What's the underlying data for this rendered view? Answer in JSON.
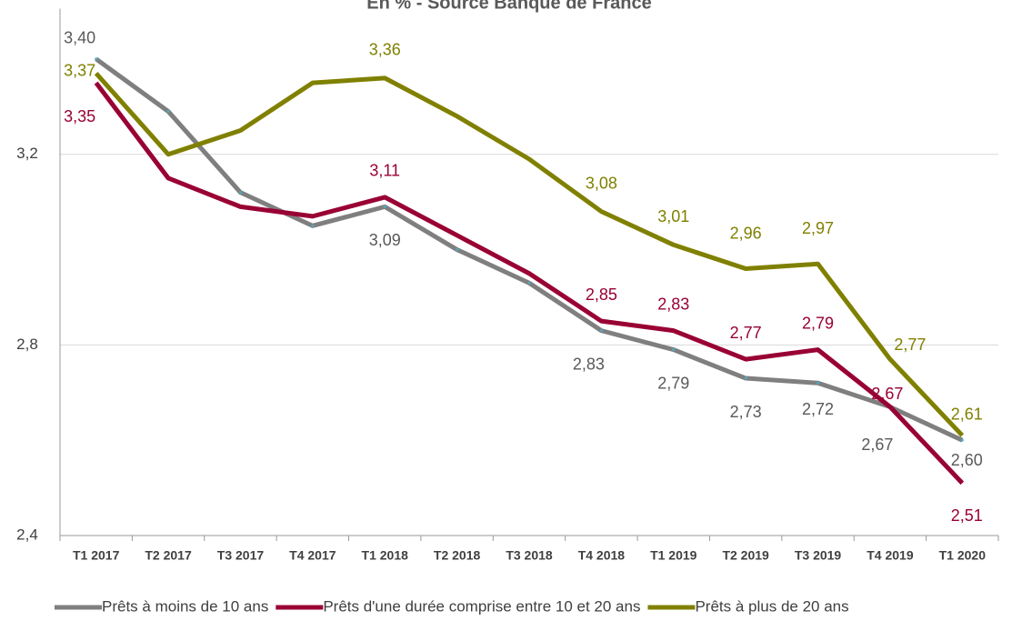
{
  "chart_data": {
    "type": "line",
    "title": "En % - Source Banque de France",
    "categories": [
      "T1 2017",
      "T2 2017",
      "T3 2017",
      "T4 2017",
      "T1 2018",
      "T2 2018",
      "T3 2018",
      "T4 2018",
      "T1 2019",
      "T2 2019",
      "T3 2019",
      "T4 2019",
      "T1 2020"
    ],
    "series": [
      {
        "name": "Prêts à moins de 10 ans",
        "color": "#7f7f7f",
        "values": [
          3.4,
          3.29,
          3.12,
          3.05,
          3.09,
          3.0,
          2.93,
          2.83,
          2.79,
          2.73,
          2.72,
          2.67,
          2.6
        ],
        "value_labels": [
          "3,40",
          null,
          null,
          null,
          "3,09",
          null,
          null,
          "2,83",
          "2,79",
          "2,73",
          "2,72",
          "2,67",
          "2,60"
        ]
      },
      {
        "name": "Prêts d'une durée comprise entre 10 et 20 ans",
        "color": "#990033",
        "values": [
          3.35,
          3.15,
          3.09,
          3.07,
          3.11,
          3.03,
          2.95,
          2.85,
          2.83,
          2.77,
          2.79,
          2.67,
          2.51
        ],
        "value_labels": [
          "3,35",
          null,
          null,
          null,
          "3,11",
          null,
          null,
          "2,85",
          "2,83",
          "2,77",
          "2,79",
          "2,67",
          "2,51"
        ]
      },
      {
        "name": "Prêts à plus de 20 ans",
        "color": "#808000",
        "values": [
          3.37,
          3.2,
          3.25,
          3.35,
          3.36,
          3.28,
          3.19,
          3.08,
          3.01,
          2.96,
          2.97,
          2.77,
          2.61
        ],
        "value_labels": [
          "3,37",
          null,
          null,
          null,
          "3,36",
          null,
          null,
          "3,08",
          "3,01",
          "2,96",
          "2,97",
          "2,77",
          "2,61"
        ]
      }
    ],
    "ylim": [
      2.4,
      3.5
    ],
    "yticks": [
      {
        "value": 2.4,
        "label": "2,4"
      },
      {
        "value": 2.8,
        "label": "2,8"
      },
      {
        "value": 3.2,
        "label": "3,2"
      }
    ],
    "grid": true,
    "legend": "bottom"
  }
}
